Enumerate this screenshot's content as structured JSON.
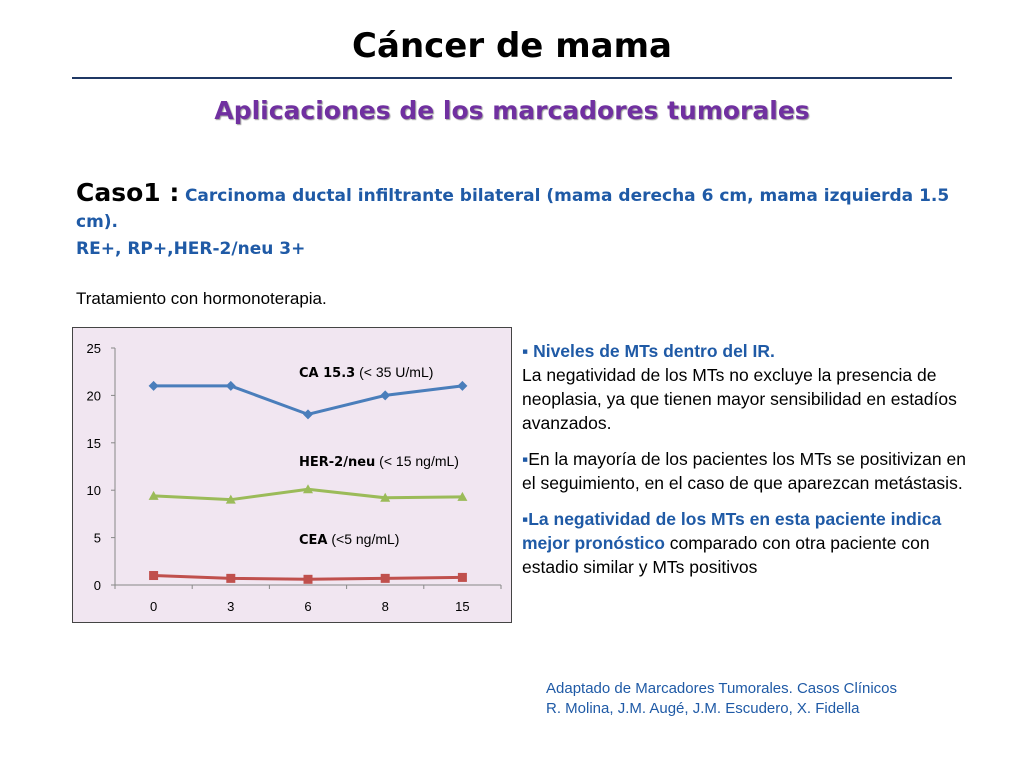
{
  "slide": {
    "title": "Cáncer de mama",
    "subtitle": "Aplicaciones de los marcadores tumorales",
    "case_label": "Caso1 :",
    "case_desc": "Carcinoma ductal infiltrante bilateral (mama derecha 6 cm, mama izquierda 1.5 cm).",
    "receptors": "RE+, RP+,HER-2/neu 3+",
    "treatment": "Tratamiento con hormonoterapia."
  },
  "bullets": [
    {
      "marker": "▪ ",
      "bold": "Niveles de MTs dentro del IR.",
      "text": "La negatividad de los MTs no excluye la presencia de neoplasia, ya que tienen mayor sensibilidad en estadíos avanzados."
    },
    {
      "marker": "▪",
      "bold": "",
      "text": "En la mayoría de los pacientes los MTs se positivizan en el seguimiento, en el caso de que aparezcan metástasis."
    },
    {
      "marker": "▪",
      "bold": "La negatividad de los MTs en esta paciente indica mejor pronóstico",
      "text": " comparado con otra paciente con estadio similar y  MTs positivos"
    }
  ],
  "source": {
    "line1": "Adaptado de Marcadores Tumorales. Casos Clínicos",
    "line2": "R. Molina, J.M. Augé, J.M. Escudero, X. Fidella"
  },
  "chart_data": {
    "type": "line",
    "categories": [
      "0",
      "3",
      "6",
      "8",
      "15"
    ],
    "ylim": [
      0,
      25
    ],
    "yticks": [
      0,
      5,
      10,
      15,
      20,
      25
    ],
    "grid": false,
    "series": [
      {
        "name": "CA 15.3",
        "unit": "(< 35 U/mL)",
        "color": "#4a7ebb",
        "marker": "diamond",
        "values": [
          21,
          21,
          18,
          20,
          21
        ]
      },
      {
        "name": "HER-2/neu",
        "unit": "(< 15 ng/mL)",
        "color": "#9bbb59",
        "marker": "triangle",
        "values": [
          9.4,
          9.0,
          10.1,
          9.2,
          9.3
        ]
      },
      {
        "name": "CEA",
        "unit": "(<5 ng/mL)",
        "color": "#c0504d",
        "marker": "square",
        "values": [
          1.0,
          0.7,
          0.6,
          0.7,
          0.8
        ]
      }
    ]
  }
}
